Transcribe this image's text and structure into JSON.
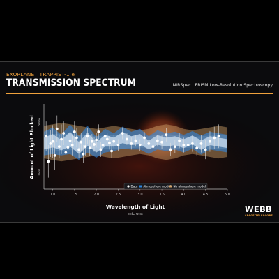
{
  "header": {
    "eyebrow": "EXOPLANET TRAPPIST-1 e",
    "title": "TRANSMISSION SPECTRUM",
    "instrument": "NIRSpec | PRISM Low-Resolution Spectroscopy"
  },
  "logo": {
    "word": "WEBB",
    "sub": "SPACE TELESCOPE"
  },
  "colors": {
    "accent": "#f0a23c",
    "data": "#ffffff",
    "atmosphere_model": "#2f86e0",
    "no_atmosphere_model": "#d2a36a",
    "background": "#0b0b0d",
    "planet_glow": "#8a2a14"
  },
  "chart_data": {
    "type": "scatter",
    "xlabel": "Wavelength of Light",
    "xlabel_units": "microns",
    "ylabel": "Amount of Light Blocked",
    "ylabel_more": "more",
    "ylabel_less": "less",
    "xlim": [
      0.8,
      5.0
    ],
    "ylim": [
      0,
      1
    ],
    "x_ticks": [
      1.0,
      1.5,
      2.0,
      2.5,
      3.0,
      3.5,
      4.0,
      4.5,
      5.0
    ],
    "x_tick_labels": [
      "1.0",
      "1.5",
      "2.0",
      "2.5",
      "3.0",
      "3.5",
      "4.0",
      "4.5",
      "5.0"
    ],
    "y_ticks_shown": false,
    "grid": false,
    "legend_position": "bottom-center",
    "legend": [
      "Data",
      "Atmosphere model",
      "No atmosphere model"
    ],
    "series": [
      {
        "name": "Data",
        "style": "points-with-errorbars",
        "x": [
          0.85,
          0.9,
          0.95,
          1.0,
          1.05,
          1.1,
          1.15,
          1.2,
          1.25,
          1.3,
          1.35,
          1.4,
          1.45,
          1.5,
          1.55,
          1.6,
          1.65,
          1.7,
          1.75,
          1.8,
          1.85,
          1.9,
          1.95,
          2.0,
          2.05,
          2.1,
          2.15,
          2.2,
          2.25,
          2.3,
          2.35,
          2.4,
          2.5,
          2.6,
          2.7,
          2.8,
          2.9,
          3.0,
          3.1,
          3.2,
          3.3,
          3.4,
          3.5,
          3.6,
          3.7,
          3.8,
          3.9,
          4.0,
          4.1,
          4.2,
          4.3,
          4.4,
          4.5,
          4.6,
          4.7,
          4.8
        ],
        "y": [
          0.62,
          0.28,
          0.52,
          0.55,
          0.36,
          0.72,
          0.48,
          0.58,
          0.66,
          0.4,
          0.47,
          0.56,
          0.5,
          0.68,
          0.6,
          0.44,
          0.54,
          0.38,
          0.48,
          0.62,
          0.46,
          0.55,
          0.51,
          0.57,
          0.68,
          0.44,
          0.5,
          0.62,
          0.58,
          0.53,
          0.42,
          0.55,
          0.5,
          0.66,
          0.58,
          0.52,
          0.56,
          0.5,
          0.6,
          0.52,
          0.48,
          0.56,
          0.54,
          0.64,
          0.44,
          0.48,
          0.56,
          0.5,
          0.5,
          0.52,
          0.46,
          0.52,
          0.44,
          0.55,
          0.6,
          0.62
        ],
        "yerr": [
          0.2,
          0.22,
          0.18,
          0.22,
          0.2,
          0.18,
          0.16,
          0.2,
          0.16,
          0.16,
          0.14,
          0.14,
          0.14,
          0.14,
          0.13,
          0.12,
          0.12,
          0.12,
          0.12,
          0.11,
          0.11,
          0.1,
          0.1,
          0.1,
          0.1,
          0.1,
          0.1,
          0.09,
          0.09,
          0.09,
          0.09,
          0.09,
          0.08,
          0.08,
          0.08,
          0.08,
          0.08,
          0.08,
          0.08,
          0.08,
          0.08,
          0.08,
          0.09,
          0.09,
          0.09,
          0.09,
          0.1,
          0.1,
          0.1,
          0.11,
          0.11,
          0.12,
          0.13,
          0.14,
          0.15,
          0.16
        ]
      },
      {
        "name": "Atmosphere model",
        "style": "band",
        "x": [
          0.8,
          1.0,
          1.2,
          1.4,
          1.6,
          1.8,
          2.0,
          2.2,
          2.4,
          2.6,
          2.8,
          3.0,
          3.2,
          3.4,
          3.6,
          3.8,
          4.0,
          4.2,
          4.4,
          4.6,
          4.8,
          5.0
        ],
        "center": [
          0.52,
          0.56,
          0.5,
          0.58,
          0.46,
          0.58,
          0.47,
          0.56,
          0.54,
          0.6,
          0.56,
          0.58,
          0.5,
          0.57,
          0.54,
          0.56,
          0.52,
          0.57,
          0.5,
          0.56,
          0.54,
          0.52
        ],
        "halfwidth": [
          0.16,
          0.18,
          0.14,
          0.2,
          0.16,
          0.18,
          0.14,
          0.16,
          0.12,
          0.15,
          0.12,
          0.14,
          0.12,
          0.13,
          0.12,
          0.12,
          0.12,
          0.12,
          0.13,
          0.12,
          0.12,
          0.12
        ]
      },
      {
        "name": "No atmosphere model",
        "style": "band",
        "x": [
          0.8,
          1.0,
          1.2,
          1.4,
          1.6,
          1.8,
          2.0,
          2.2,
          2.4,
          2.6,
          2.8,
          3.0,
          3.2,
          3.4,
          3.6,
          3.8,
          4.0,
          4.2,
          4.4,
          4.6,
          4.8,
          5.0
        ],
        "center": [
          0.54,
          0.54,
          0.54,
          0.54,
          0.54,
          0.54,
          0.54,
          0.54,
          0.54,
          0.54,
          0.54,
          0.54,
          0.54,
          0.54,
          0.54,
          0.54,
          0.54,
          0.54,
          0.54,
          0.54,
          0.54,
          0.54
        ],
        "halfwidth": [
          0.22,
          0.24,
          0.26,
          0.24,
          0.22,
          0.2,
          0.18,
          0.2,
          0.22,
          0.2,
          0.18,
          0.16,
          0.18,
          0.22,
          0.24,
          0.22,
          0.18,
          0.16,
          0.18,
          0.2,
          0.22,
          0.2
        ]
      }
    ]
  }
}
